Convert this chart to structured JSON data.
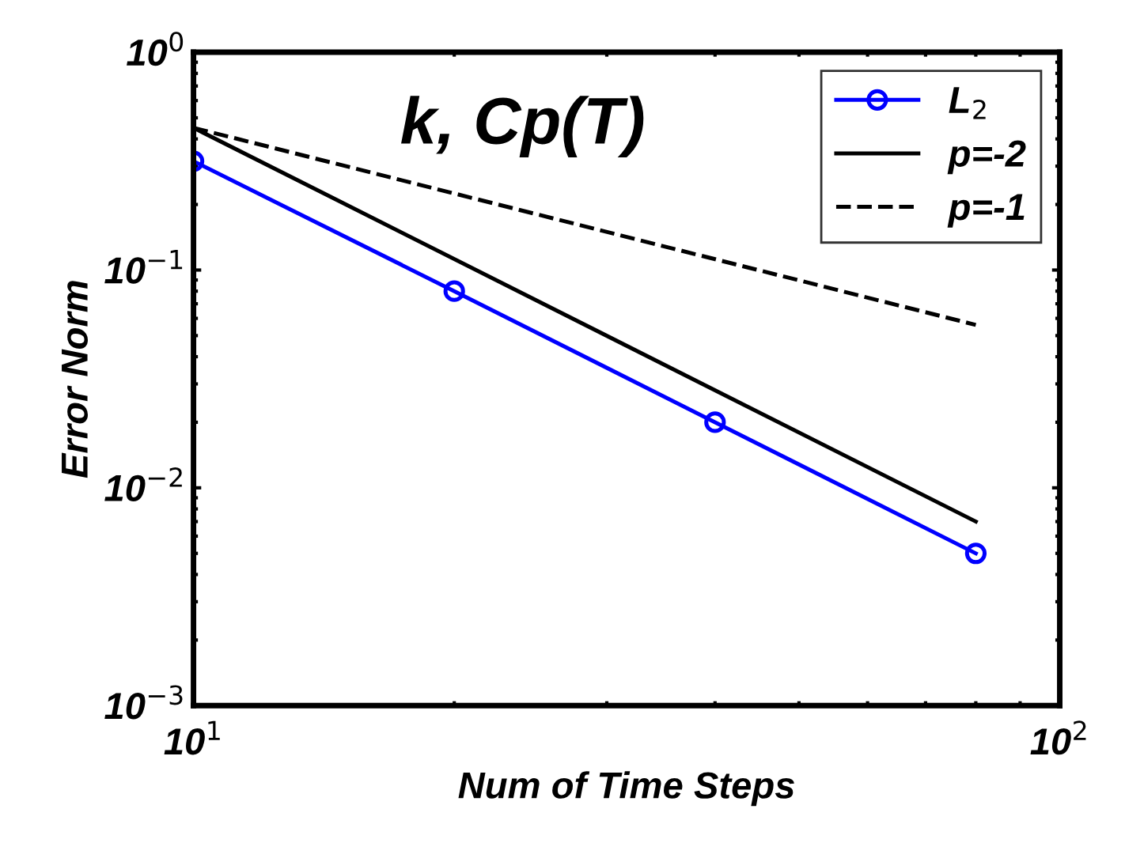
{
  "chart_data": {
    "type": "line",
    "title": "k, Cp(T)",
    "xlabel": "Num of Time Steps",
    "ylabel": "Error Norm",
    "log": "xy",
    "grid": false,
    "legend": "top right",
    "xlim": [
      10,
      100
    ],
    "ylim": [
      0.001,
      1
    ],
    "xticks": [
      {
        "value": 10,
        "label": "10$^{1}$"
      },
      {
        "value": 100,
        "label": "10$^{2}$"
      }
    ],
    "yticks": [
      {
        "value": 0.001,
        "label": "10$^{−3}$"
      },
      {
        "value": 0.01,
        "label": "10$^{−2}$"
      },
      {
        "value": 0.1,
        "label": "10$^{−1}$"
      },
      {
        "value": 1,
        "label": "10$^{0}$"
      }
    ],
    "series": [
      {
        "name": "L$_{2}$",
        "color": "#0000ff",
        "x": [
          10,
          20,
          40,
          80
        ],
        "values": [
          0.316,
          0.08,
          0.02,
          0.005
        ],
        "marker": "circle",
        "line_style": "solid"
      },
      {
        "name": "p=-2",
        "color": "#000000",
        "x": [
          10,
          80
        ],
        "values": [
          0.45,
          0.007
        ],
        "marker": "none",
        "line_style": "solid"
      },
      {
        "name": "p=-1",
        "color": "#000000",
        "x": [
          10,
          80
        ],
        "values": [
          0.45,
          0.056
        ],
        "marker": "none",
        "line_style": "dashed"
      }
    ]
  }
}
